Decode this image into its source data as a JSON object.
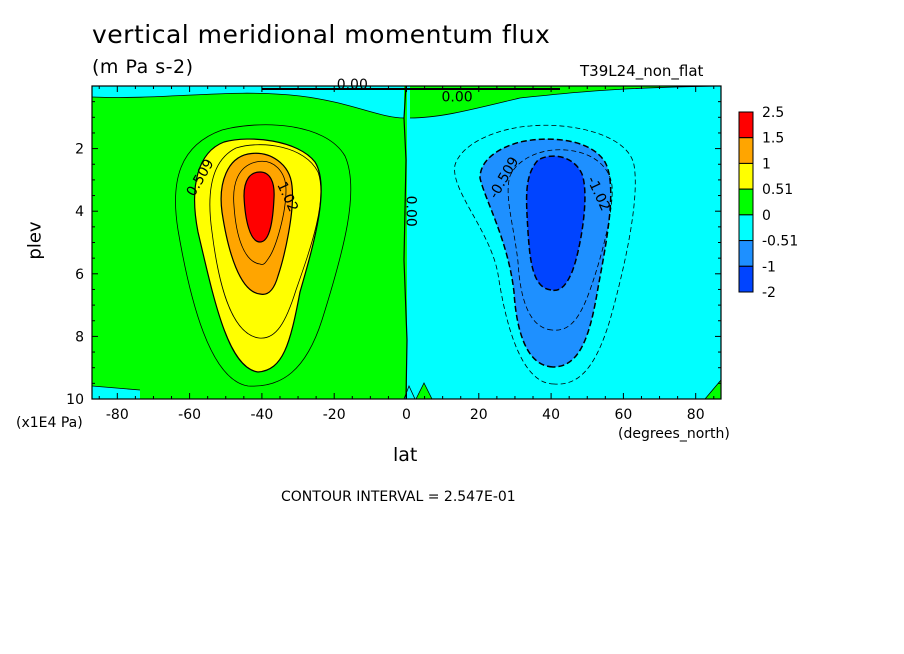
{
  "figure": {
    "title": "vertical meridional momentum flux",
    "units": "(m Pa s-2)",
    "run_tag": "T39L24_non_flat",
    "contour_interval": "CONTOUR INTERVAL = 2.547E-01"
  },
  "chart_data": {
    "type": "heatmap",
    "xlabel": "lat",
    "xunits": "(degrees_north)",
    "ylabel": "plev",
    "yunits": "(x1E4 Pa)",
    "xlim": [
      -87,
      87
    ],
    "ylim": [
      10,
      0
    ],
    "xticks": [
      -80,
      -60,
      -40,
      -20,
      0,
      20,
      40,
      60,
      80
    ],
    "yticks": [
      2,
      4,
      6,
      8,
      10
    ],
    "colorbar": {
      "labels": [
        "2.5",
        "1.5",
        "1",
        "0.51",
        "0",
        "-0.51",
        "-1",
        "-2"
      ],
      "colors": [
        "#ff0000",
        "#ffa500",
        "#ffff00",
        "#00ff00",
        "#00ffff",
        "#1e90ff",
        "#0044ff"
      ]
    },
    "contour_labels": [
      {
        "text": "0.509",
        "x": -56,
        "y": 3.0,
        "angle": -60
      },
      {
        "text": "1.02",
        "x": -34,
        "y": 3.6,
        "angle": 65
      },
      {
        "text": "0.00",
        "x": 0,
        "y": 4.0,
        "angle": 90
      },
      {
        "text": "0.00",
        "x": -15,
        "y": 0.1,
        "angle": 0
      },
      {
        "text": "0.00",
        "x": 14,
        "y": 0.5,
        "angle": 0
      },
      {
        "text": "-0.509",
        "x": 28,
        "y": 3.0,
        "angle": -60
      },
      {
        "text": "-1.02",
        "x": 52,
        "y": 3.5,
        "angle": 65
      }
    ],
    "features": [
      {
        "name": "SH positive maximum",
        "lat": -40,
        "plev": 4,
        "level": "1.5 to 2.5"
      },
      {
        "name": "NH negative minimum",
        "lat": 40,
        "plev": 4,
        "level": "-1 to -2"
      }
    ]
  }
}
